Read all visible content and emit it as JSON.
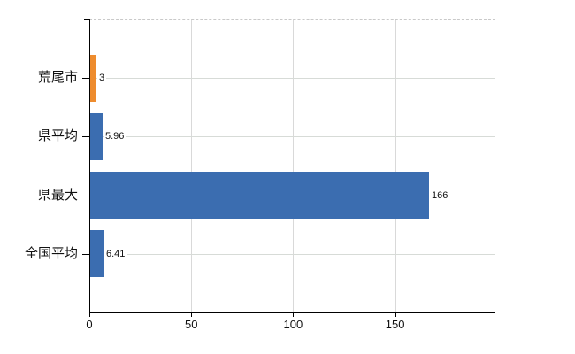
{
  "chart_data": {
    "type": "bar",
    "orientation": "horizontal",
    "title": "",
    "xlabel": "",
    "ylabel": "",
    "categories": [
      "荒尾市",
      "県平均",
      "県最大",
      "全国平均"
    ],
    "values": [
      3,
      5.96,
      166,
      6.41
    ],
    "value_labels": [
      "3",
      "5.96",
      "166",
      "6.41"
    ],
    "bar_colors": [
      "#EE8C2E",
      "#3B6DB0",
      "#3B6DB0",
      "#3B6DB0"
    ],
    "x_ticks": [
      0,
      50,
      100,
      150
    ],
    "x_tick_labels": [
      "0",
      "50",
      "100",
      "150"
    ],
    "xlim": [
      0,
      199.2
    ],
    "grid": true,
    "legend": false
  },
  "colors": {
    "bar_blue": "#3B6DB0",
    "bar_orange": "#EE8C2E",
    "gridline": "#d9d9d9",
    "axis": "#000000",
    "text": "#1a1a1a",
    "background": "#ffffff"
  }
}
